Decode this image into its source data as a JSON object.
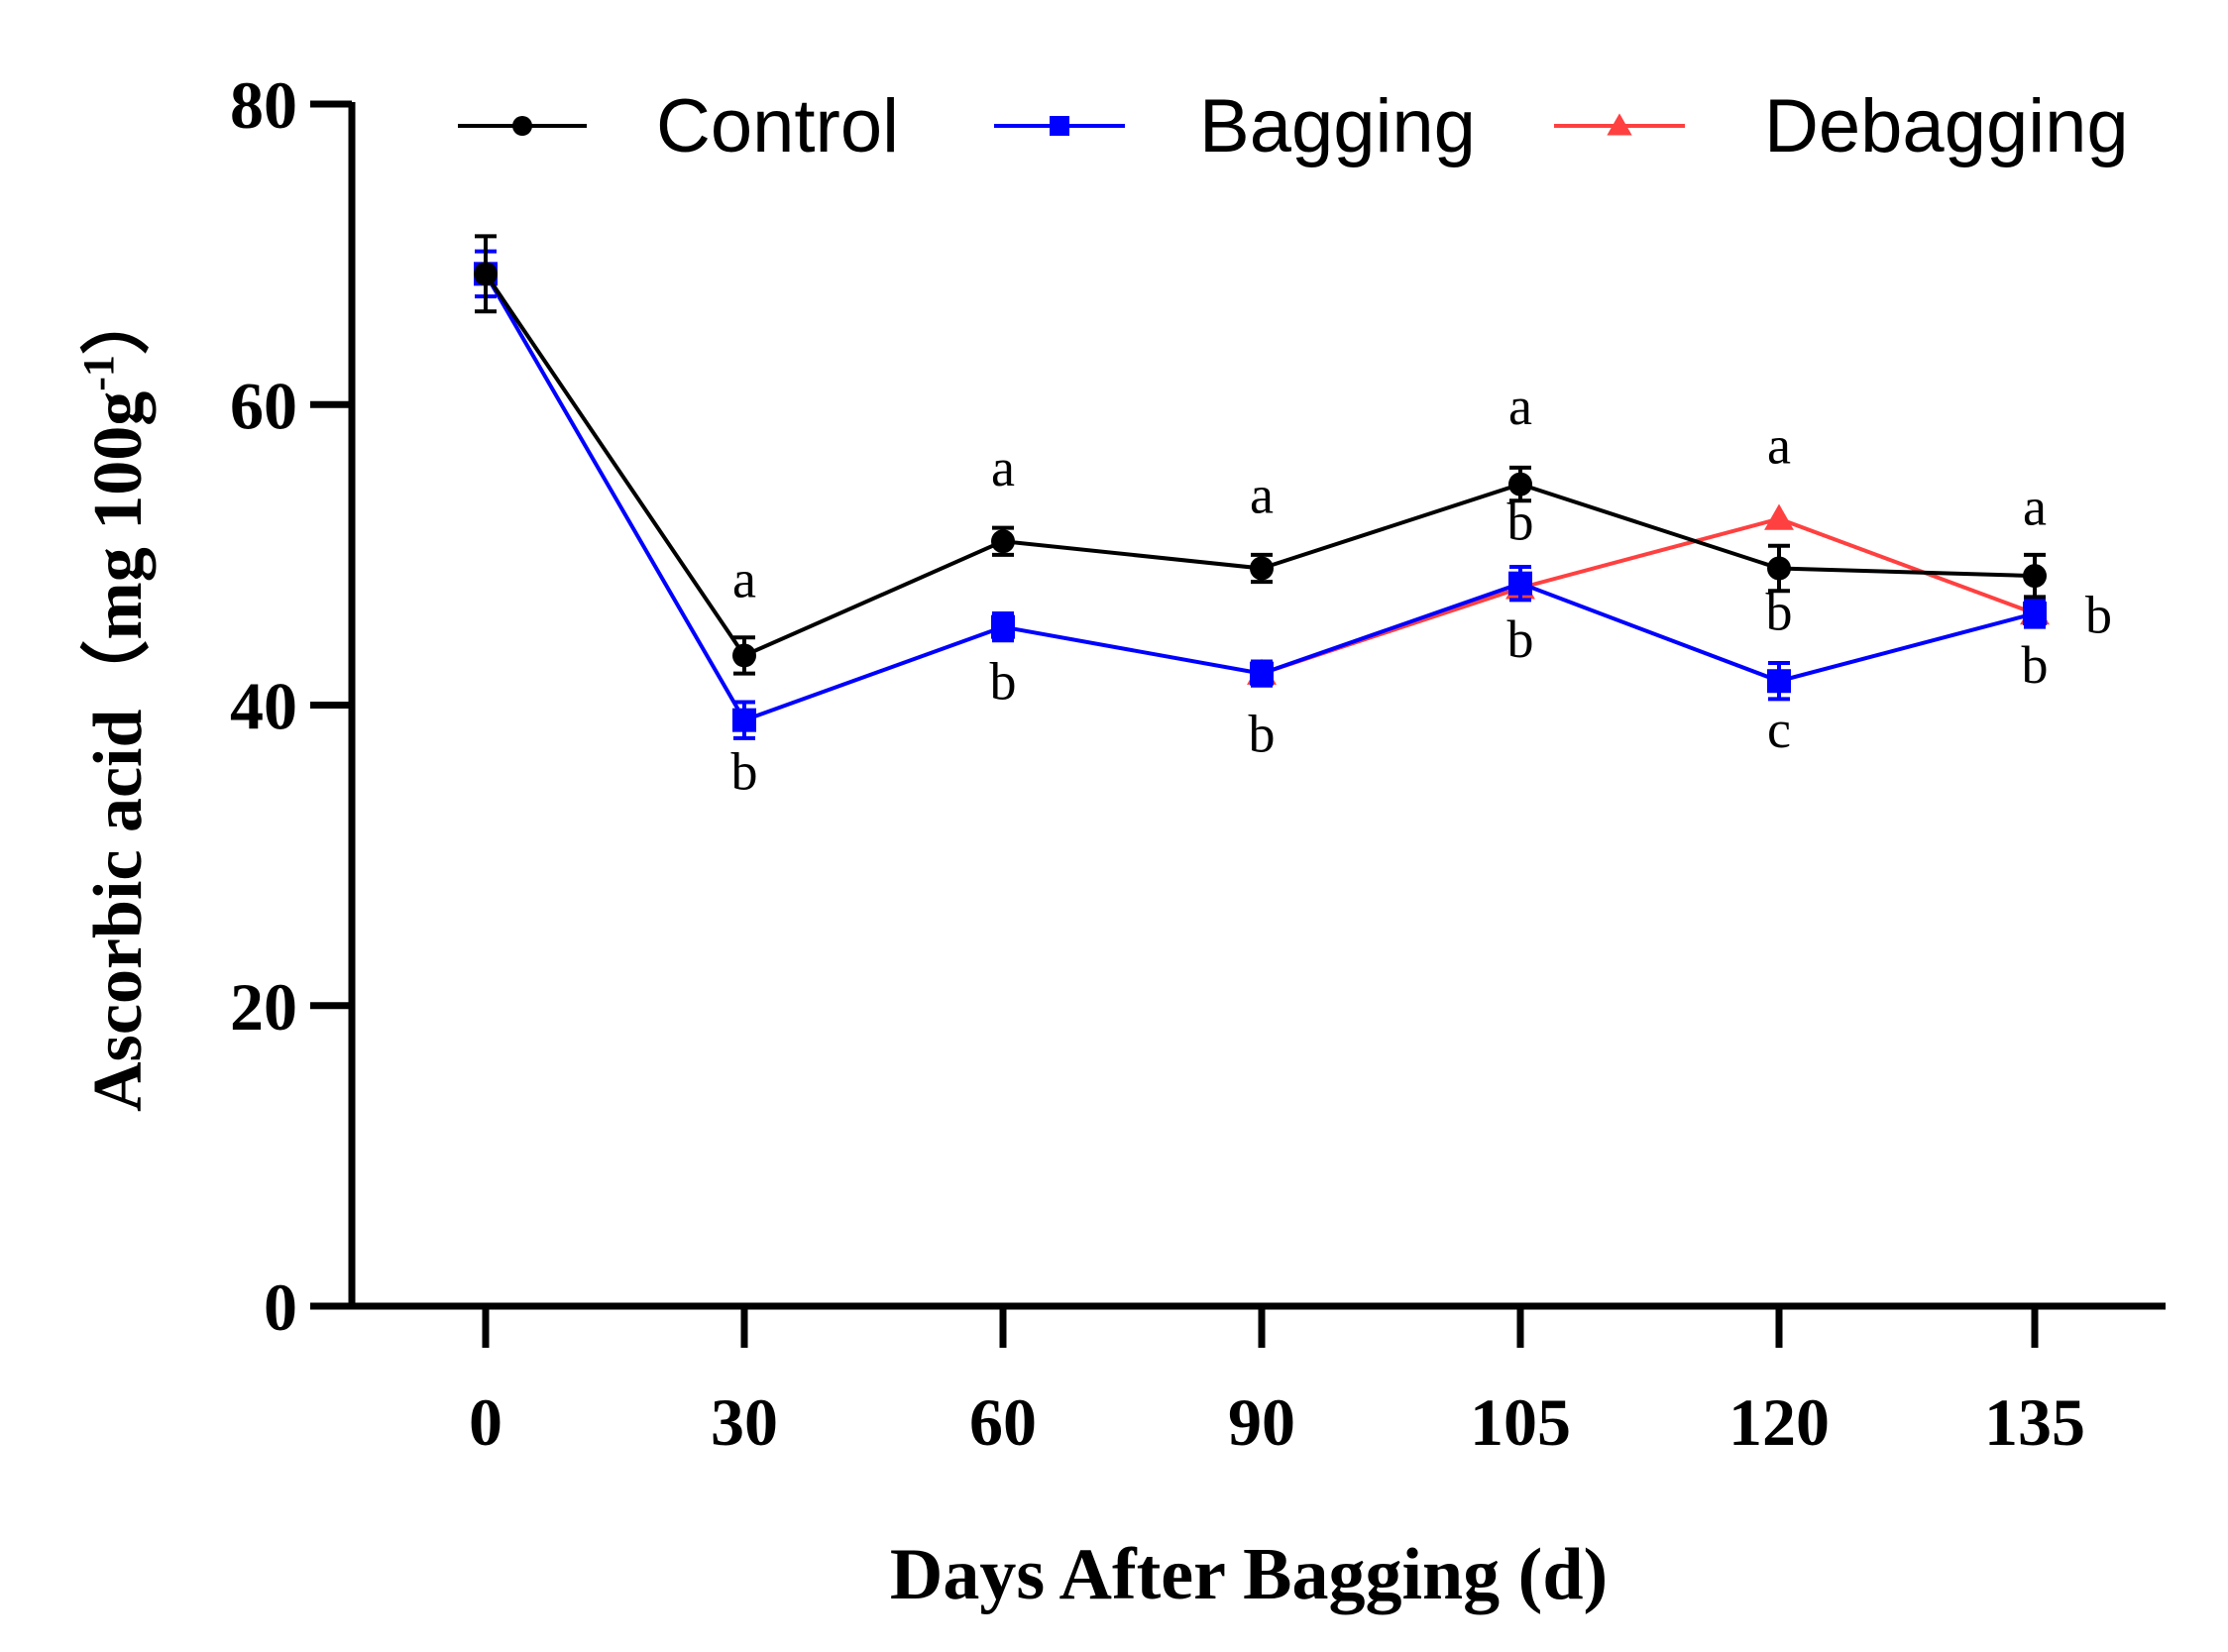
{
  "chart_data": {
    "type": "line",
    "title": "",
    "xlabel": "Days After Bagging (d)",
    "ylabel": "Ascorbic acid（mg 100g",
    "ylabel_sup": "-1",
    "ylabel_close": "）",
    "ylim": [
      0,
      80
    ],
    "yticks": [
      0,
      20,
      40,
      60,
      80
    ],
    "ytick_labels": [
      "0",
      "20",
      "40",
      "60",
      "80"
    ],
    "x_categories": [
      "0",
      "30",
      "60",
      "90",
      "105",
      "120",
      "135"
    ],
    "legend_position": "top",
    "series": [
      {
        "name": "Control",
        "color": "#000000",
        "marker": "circle",
        "values": [
          68.7,
          43.3,
          50.9,
          49.1,
          54.7,
          49.1,
          48.6
        ],
        "errors": [
          2.5,
          1.2,
          0.9,
          0.9,
          1.1,
          1.5,
          1.4
        ]
      },
      {
        "name": "Bagging",
        "color": "#0000ff",
        "marker": "square",
        "values": [
          68.7,
          39.0,
          45.2,
          42.1,
          48.1,
          41.6,
          46.1
        ],
        "errors": [
          1.5,
          1.2,
          0.9,
          0.8,
          1.1,
          1.2,
          0.9
        ]
      },
      {
        "name": "Debagging",
        "color": "#ff4040",
        "marker": "triangle",
        "values": [
          null,
          null,
          null,
          42.1,
          47.8,
          52.4,
          46.1
        ],
        "errors": [
          0,
          0,
          0,
          0,
          0,
          0,
          0
        ]
      }
    ],
    "annotations": [
      {
        "text": "a",
        "x": 1,
        "y": 47.2,
        "anchor": "middle"
      },
      {
        "text": "b",
        "x": 1,
        "y": 34.4,
        "anchor": "middle"
      },
      {
        "text": "a",
        "x": 2,
        "y": 54.6,
        "anchor": "middle"
      },
      {
        "text": "b",
        "x": 2,
        "y": 40.4,
        "anchor": "middle"
      },
      {
        "text": "a",
        "x": 3,
        "y": 52.8,
        "anchor": "middle"
      },
      {
        "text": "b",
        "x": 3,
        "y": 36.9,
        "anchor": "middle"
      },
      {
        "text": "a",
        "x": 4,
        "y": 58.7,
        "anchor": "middle"
      },
      {
        "text": "b",
        "x": 4,
        "y": 51.0,
        "anchor": "middle"
      },
      {
        "text": "b",
        "x": 4,
        "y": 43.2,
        "anchor": "middle"
      },
      {
        "text": "a",
        "x": 5,
        "y": 56.1,
        "anchor": "middle"
      },
      {
        "text": "b",
        "x": 5,
        "y": 45.0,
        "anchor": "middle"
      },
      {
        "text": "c",
        "x": 5,
        "y": 37.2,
        "anchor": "middle"
      },
      {
        "text": "a",
        "x": 6,
        "y": 52.0,
        "anchor": "middle"
      },
      {
        "text": "b",
        "x": 6,
        "y": 41.5,
        "anchor": "middle"
      },
      {
        "text": "b",
        "x": 6.25,
        "y": 44.8,
        "anchor": "middle"
      }
    ]
  }
}
